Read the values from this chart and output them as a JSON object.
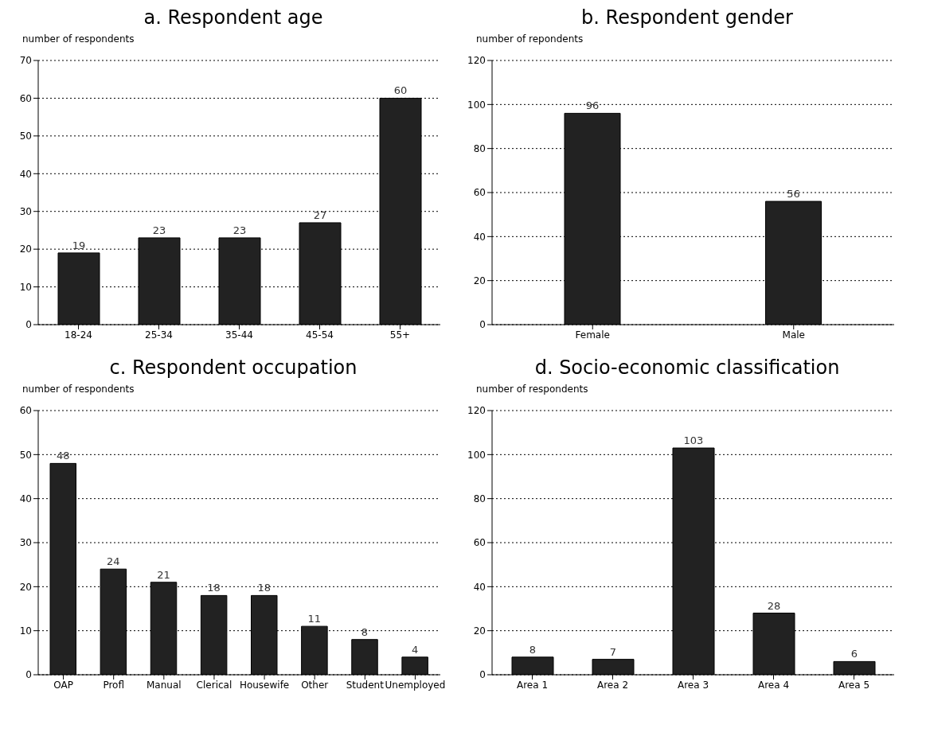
{
  "chart_data": [
    {
      "type": "bar",
      "title": "a. Respondent age",
      "ylabel": "number of respondents",
      "categories": [
        "18-24",
        "25-34",
        "35-44",
        "45-54",
        "55+"
      ],
      "values": [
        19,
        23,
        23,
        27,
        60
      ],
      "color": "#222222",
      "ylim": [
        0,
        70
      ],
      "yticks": [
        0,
        10,
        20,
        30,
        40,
        50,
        60,
        70
      ],
      "grid": "y",
      "data_labels": true
    },
    {
      "type": "bar",
      "title": "b. Respondent gender",
      "ylabel": "number of repondents",
      "categories": [
        "Female",
        "Male"
      ],
      "values": [
        96,
        56
      ],
      "color": "#222222",
      "ylim": [
        0,
        120
      ],
      "yticks": [
        0,
        20,
        40,
        60,
        80,
        100,
        120
      ],
      "grid": "y",
      "data_labels": true
    },
    {
      "type": "bar",
      "title": "c. Respondent occupation",
      "ylabel": "number of respondents",
      "categories": [
        "OAP",
        "Profl",
        "Manual",
        "Clerical",
        "Housewife",
        "Other",
        "Student",
        "Unemployed"
      ],
      "values": [
        48,
        24,
        21,
        18,
        18,
        11,
        8,
        4
      ],
      "color": "#222222",
      "ylim": [
        0,
        60
      ],
      "yticks": [
        0,
        10,
        20,
        30,
        40,
        50,
        60
      ],
      "grid": "y",
      "data_labels": true
    },
    {
      "type": "bar",
      "title": "d. Socio-economic classification",
      "ylabel": "number of respondents",
      "categories": [
        "Area 1",
        "Area 2",
        "Area 3",
        "Area 4",
        "Area 5"
      ],
      "values": [
        8,
        7,
        103,
        28,
        6
      ],
      "color": "#222222",
      "ylim": [
        0,
        120
      ],
      "yticks": [
        0,
        20,
        40,
        60,
        80,
        100,
        120
      ],
      "grid": "y",
      "data_labels": true
    }
  ]
}
